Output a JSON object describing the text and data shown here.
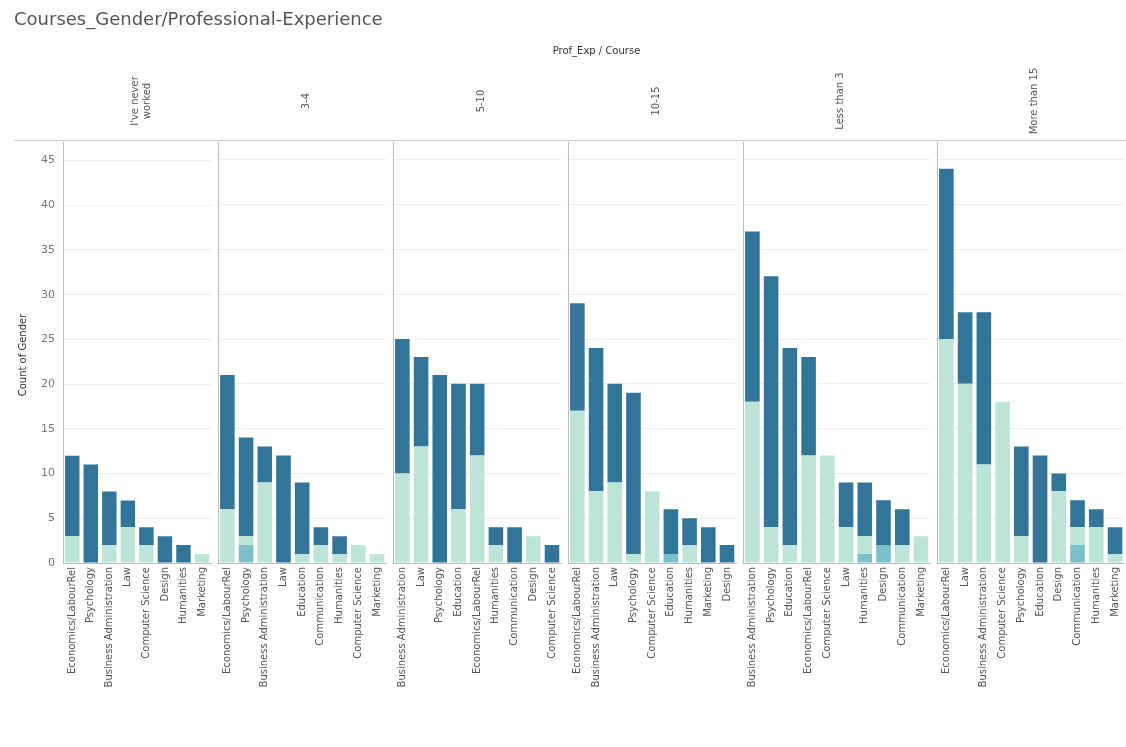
{
  "chart_data": [
    {
      "type": "bar",
      "title": "I've never worked",
      "ylabel": "Count of Gender",
      "annotations": [
        "Courses_Gender/Professional-Experience",
        "Prof_Exp / Course"
      ],
      "stacked": true,
      "grid": "y",
      "ylim": [
        0,
        47
      ],
      "yticks": [
        0,
        5,
        10,
        15,
        20,
        25,
        30,
        35,
        40,
        45
      ],
      "categories": [
        "Economics/LabourRel",
        "Psychology",
        "Business Administration",
        "Law",
        "Computer Science",
        "Design",
        "Humanities",
        "Marketing"
      ],
      "series": [
        {
          "color": "#7bbfc9",
          "values": [
            0,
            0,
            0,
            0,
            0,
            0,
            0,
            0
          ]
        },
        {
          "color": "#bde4d9",
          "values": [
            3,
            0,
            2,
            4,
            2,
            0,
            0,
            1
          ]
        },
        {
          "color": "#337599",
          "values": [
            9,
            11,
            6,
            3,
            2,
            3,
            2,
            0
          ]
        }
      ]
    },
    {
      "type": "bar",
      "title": "3-4",
      "stacked": true,
      "grid": "y",
      "tick_labels": "x",
      "ylim": [
        0,
        47
      ],
      "yticks": [
        0,
        5,
        10,
        15,
        20,
        25,
        30,
        35,
        40,
        45
      ],
      "categories": [
        "Economics/LabourRel",
        "Psychology",
        "Business Administration",
        "Law",
        "Education",
        "Communication",
        "Humanities",
        "Computer Science",
        "Marketing"
      ],
      "series": [
        {
          "color": "#7bbfc9",
          "values": [
            0,
            2,
            0,
            0,
            0,
            0,
            0,
            0,
            0
          ]
        },
        {
          "color": "#bde4d9",
          "values": [
            6,
            1,
            9,
            0,
            1,
            2,
            1,
            2,
            1
          ]
        },
        {
          "color": "#337599",
          "values": [
            15,
            11,
            4,
            12,
            8,
            2,
            2,
            0,
            0
          ]
        }
      ]
    },
    {
      "type": "bar",
      "title": "5-10",
      "stacked": true,
      "grid": "y",
      "tick_labels": "x",
      "ylim": [
        0,
        47
      ],
      "yticks": [
        0,
        5,
        10,
        15,
        20,
        25,
        30,
        35,
        40,
        45
      ],
      "categories": [
        "Business Administration",
        "Law",
        "Psychology",
        "Education",
        "Economics/LabourRel",
        "Humanities",
        "Communication",
        "Design",
        "Computer Science"
      ],
      "series": [
        {
          "color": "#7bbfc9",
          "values": [
            0,
            0,
            0,
            0,
            0,
            0,
            0,
            0,
            0
          ]
        },
        {
          "color": "#bde4d9",
          "values": [
            10,
            13,
            0,
            6,
            12,
            2,
            0,
            3,
            0
          ]
        },
        {
          "color": "#337599",
          "values": [
            15,
            10,
            21,
            14,
            8,
            2,
            4,
            0,
            2
          ]
        }
      ]
    },
    {
      "type": "bar",
      "title": "10-15",
      "stacked": true,
      "grid": "y",
      "tick_labels": "x",
      "ylim": [
        0,
        47
      ],
      "yticks": [
        0,
        5,
        10,
        15,
        20,
        25,
        30,
        35,
        40,
        45
      ],
      "categories": [
        "Economics/LabourRel",
        "Business Administration",
        "Law",
        "Psychology",
        "Computer Science",
        "Education",
        "Humanities",
        "Marketing",
        "Design"
      ],
      "series": [
        {
          "color": "#7bbfc9",
          "values": [
            0,
            0,
            0,
            0,
            0,
            1,
            0,
            0,
            0
          ]
        },
        {
          "color": "#bde4d9",
          "values": [
            17,
            8,
            9,
            1,
            8,
            0,
            2,
            0,
            0
          ]
        },
        {
          "color": "#337599",
          "values": [
            12,
            16,
            11,
            18,
            0,
            5,
            3,
            4,
            2
          ]
        }
      ]
    },
    {
      "type": "bar",
      "title": "Less than 3",
      "stacked": true,
      "grid": "y",
      "tick_labels": "x",
      "ylim": [
        0,
        47
      ],
      "yticks": [
        0,
        5,
        10,
        15,
        20,
        25,
        30,
        35,
        40,
        45
      ],
      "categories": [
        "Business Administration",
        "Psychology",
        "Education",
        "Economics/LabourRel",
        "Computer Science",
        "Law",
        "Humanities",
        "Design",
        "Communication",
        "Marketing"
      ],
      "series": [
        {
          "color": "#7bbfc9",
          "values": [
            0,
            0,
            0,
            0,
            0,
            0,
            1,
            2,
            0,
            0
          ]
        },
        {
          "color": "#bde4d9",
          "values": [
            18,
            4,
            2,
            12,
            12,
            4,
            2,
            0,
            2,
            3
          ]
        },
        {
          "color": "#337599",
          "values": [
            19,
            28,
            22,
            11,
            0,
            5,
            6,
            5,
            4,
            0
          ]
        }
      ]
    },
    {
      "type": "bar",
      "title": "More than 15",
      "stacked": true,
      "grid": "y",
      "tick_labels": "x",
      "ylim": [
        0,
        47
      ],
      "yticks": [
        0,
        5,
        10,
        15,
        20,
        25,
        30,
        35,
        40,
        45
      ],
      "categories": [
        "Economics/LabourRel",
        "Law",
        "Business Administration",
        "Computer Science",
        "Psychology",
        "Education",
        "Design",
        "Communication",
        "Humanities",
        "Marketing"
      ],
      "series": [
        {
          "color": "#7bbfc9",
          "values": [
            0,
            0,
            0,
            0,
            0,
            0,
            0,
            2,
            0,
            0
          ]
        },
        {
          "color": "#bde4d9",
          "values": [
            25,
            20,
            11,
            18,
            3,
            0,
            8,
            2,
            4,
            1
          ]
        },
        {
          "color": "#337599",
          "values": [
            19,
            8,
            17,
            0,
            10,
            12,
            2,
            3,
            2,
            3
          ]
        }
      ]
    }
  ]
}
